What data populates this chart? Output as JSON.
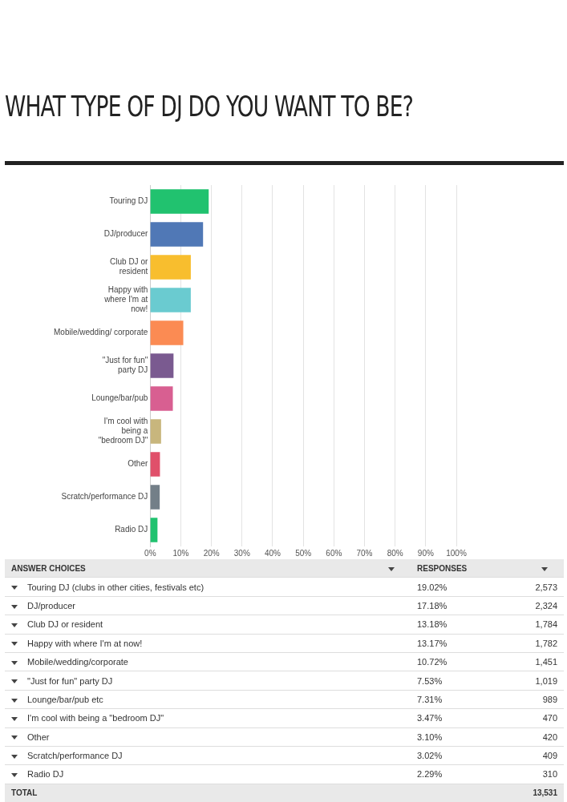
{
  "chart_data": [
    {
      "type": "bar",
      "title": "WHAT TYPE OF DJ DO YOU WANT TO BE?",
      "orientation": "horizontal",
      "categories": [
        "Touring DJ",
        "DJ/producer",
        "Club DJ or resident",
        "Happy with where I'm at now!",
        "Mobile/wedding/ corporate",
        "\"Just for fun\" party DJ",
        "Lounge/bar/pub",
        "I'm cool with being a \"bedroom DJ\"",
        "Other",
        "Scratch/performance DJ",
        "Radio DJ"
      ],
      "values": [
        19.02,
        17.18,
        13.18,
        13.17,
        10.72,
        7.53,
        7.31,
        3.47,
        3.1,
        3.02,
        2.29
      ],
      "value_labels": [
        "19.02%",
        "17.18%",
        "13.18%",
        "13.17%",
        "10.72%",
        "7.53%",
        "7.31%",
        "3.47%",
        "3.10%",
        "3.02%",
        "2.29%"
      ],
      "colors": [
        "#21c26f",
        "#5078b6",
        "#f8be2e",
        "#6acbd0",
        "#fb8b53",
        "#7a5a90",
        "#d85f91",
        "#c8b67d",
        "#e0506a",
        "#737f88",
        "#21c26f"
      ],
      "xlim": [
        0,
        100
      ],
      "xticks": [
        {
          "value": 0,
          "label": "0%"
        },
        {
          "value": 10,
          "label": "10%"
        },
        {
          "value": 20,
          "label": "20%"
        },
        {
          "value": 30,
          "label": "30%"
        },
        {
          "value": 40,
          "label": "40%"
        },
        {
          "value": 50,
          "label": "50%"
        },
        {
          "value": 60,
          "label": "60%"
        },
        {
          "value": 70,
          "label": "70%"
        },
        {
          "value": 80,
          "label": "80%"
        },
        {
          "value": 90,
          "label": "90%"
        },
        {
          "value": 100,
          "label": "100%"
        }
      ],
      "grid": "x",
      "legend": false
    },
    {
      "type": "other",
      "annotations": [
        "ANSWER CHOICES",
        "RESPONSES",
        "Touring DJ (clubs in other cities, festivals etc)",
        "2,573",
        "DJ/producer",
        "2,324",
        "Club DJ or resident",
        "1,784",
        "Happy with where I'm at now!",
        "1,782",
        "Mobile/wedding/corporate",
        "1,451",
        "\"Just for fun\" party DJ",
        "1,019",
        "Lounge/bar/pub etc",
        "989",
        "I'm cool with being a \"bedroom DJ\"",
        "470",
        "Other",
        "420",
        "Scratch/performance DJ",
        "409",
        "Radio DJ",
        "310",
        "TOTAL",
        "13,531"
      ]
    }
  ]
}
